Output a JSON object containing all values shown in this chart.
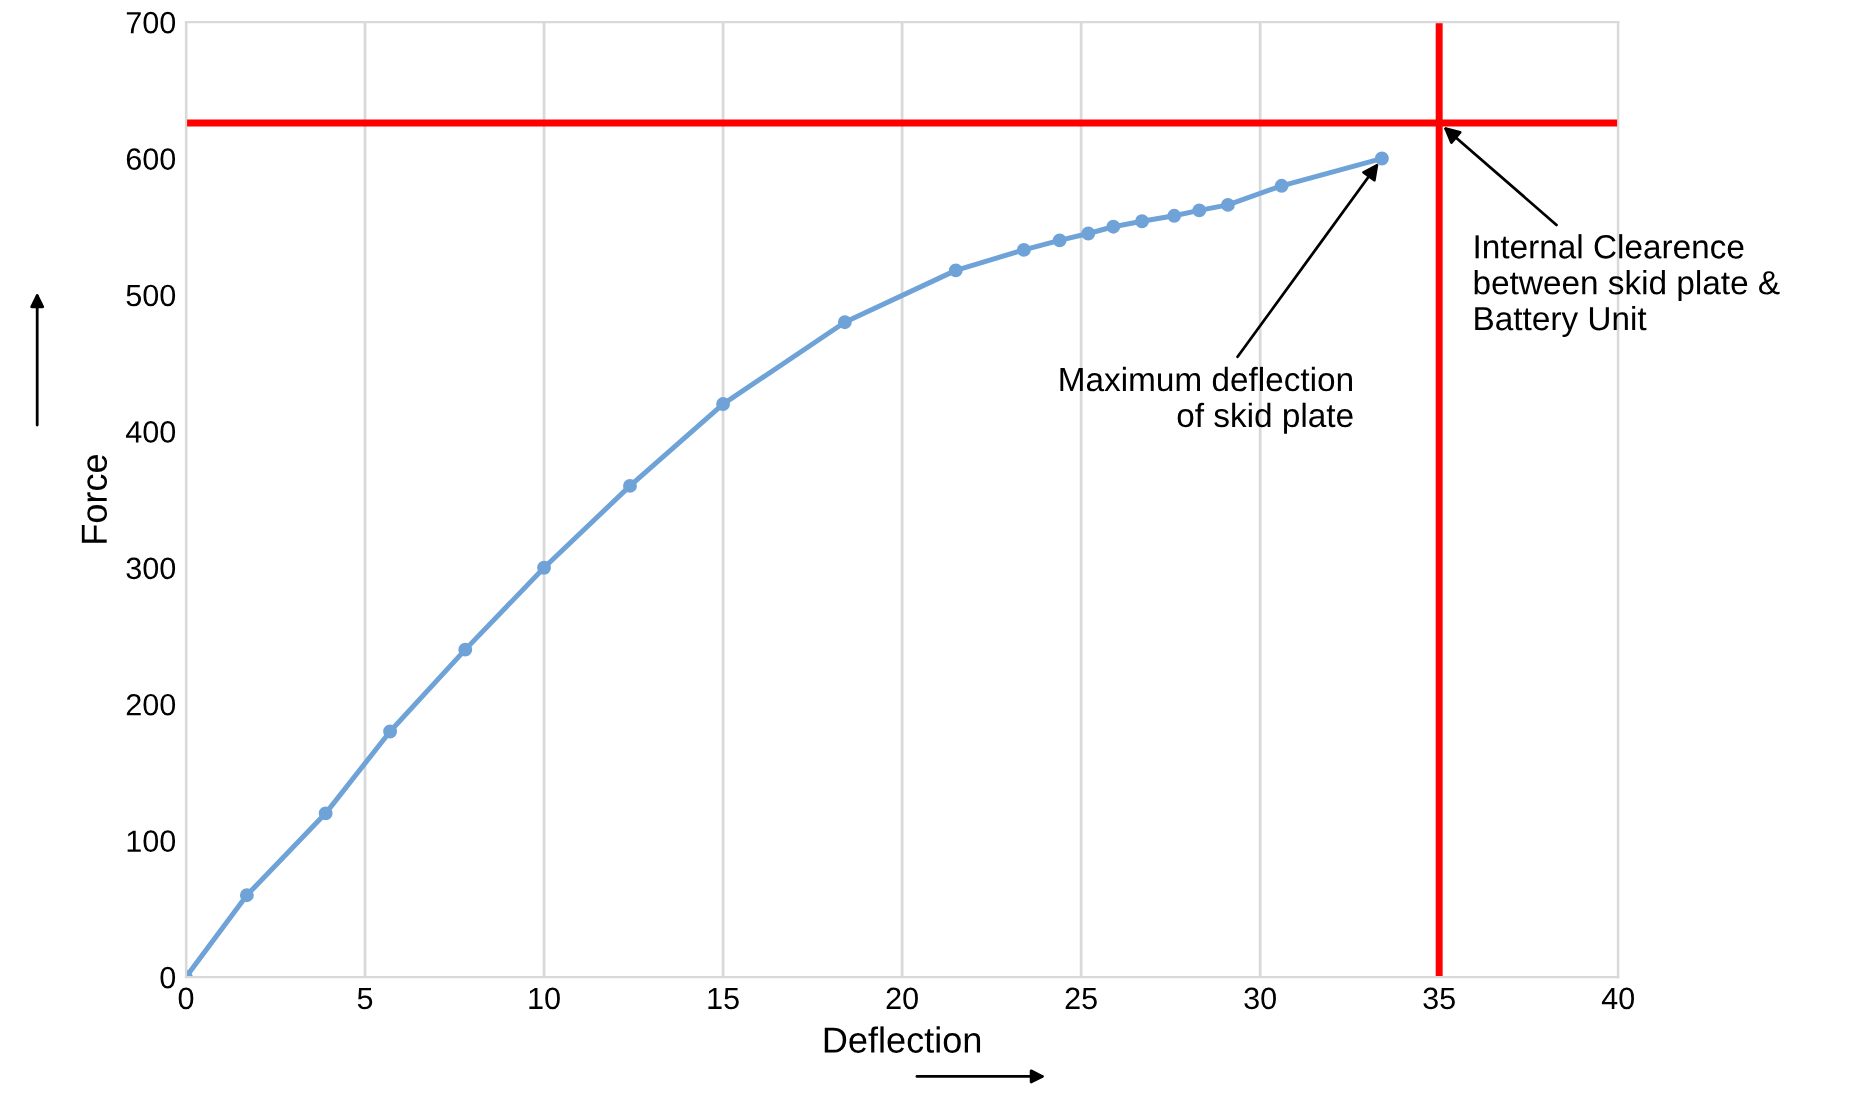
{
  "chart_data": {
    "type": "line",
    "xlabel": "Deflection",
    "ylabel": "Force",
    "x": [
      0,
      1.7,
      3.9,
      5.7,
      7.8,
      10,
      12.4,
      15,
      18.4,
      21.5,
      23.4,
      24.4,
      25.2,
      25.9,
      26.7,
      27.6,
      28.3,
      29.1,
      30.6,
      33.4
    ],
    "series": [
      {
        "color": "#6fa3d8",
        "values": [
          0,
          60,
          120,
          180,
          240,
          300,
          360,
          420,
          480,
          518,
          533,
          540,
          545,
          550,
          554,
          558,
          562,
          566,
          580,
          600
        ]
      }
    ],
    "xlim": [
      0,
      40
    ],
    "xticks": [
      0,
      5,
      10,
      15,
      20,
      25,
      30,
      35,
      40
    ],
    "ylim": [
      0,
      700
    ],
    "yticks": [
      0,
      100,
      200,
      300,
      400,
      500,
      600,
      700
    ],
    "grid": "x",
    "marker": "circle",
    "line_style": "solid",
    "ref_lines": [
      {
        "axis": "y",
        "value": 626,
        "color": "#ff0000"
      },
      {
        "axis": "x",
        "value": 35,
        "color": "#ff0000"
      }
    ],
    "annotations": [
      {
        "text": "Maximum deflection\nof skid plate",
        "x": 33.4,
        "y": 600
      },
      {
        "text": "Internal Clearence\nbetween skid plate &\nBattery Unit",
        "x": 35,
        "y": 626
      }
    ]
  }
}
